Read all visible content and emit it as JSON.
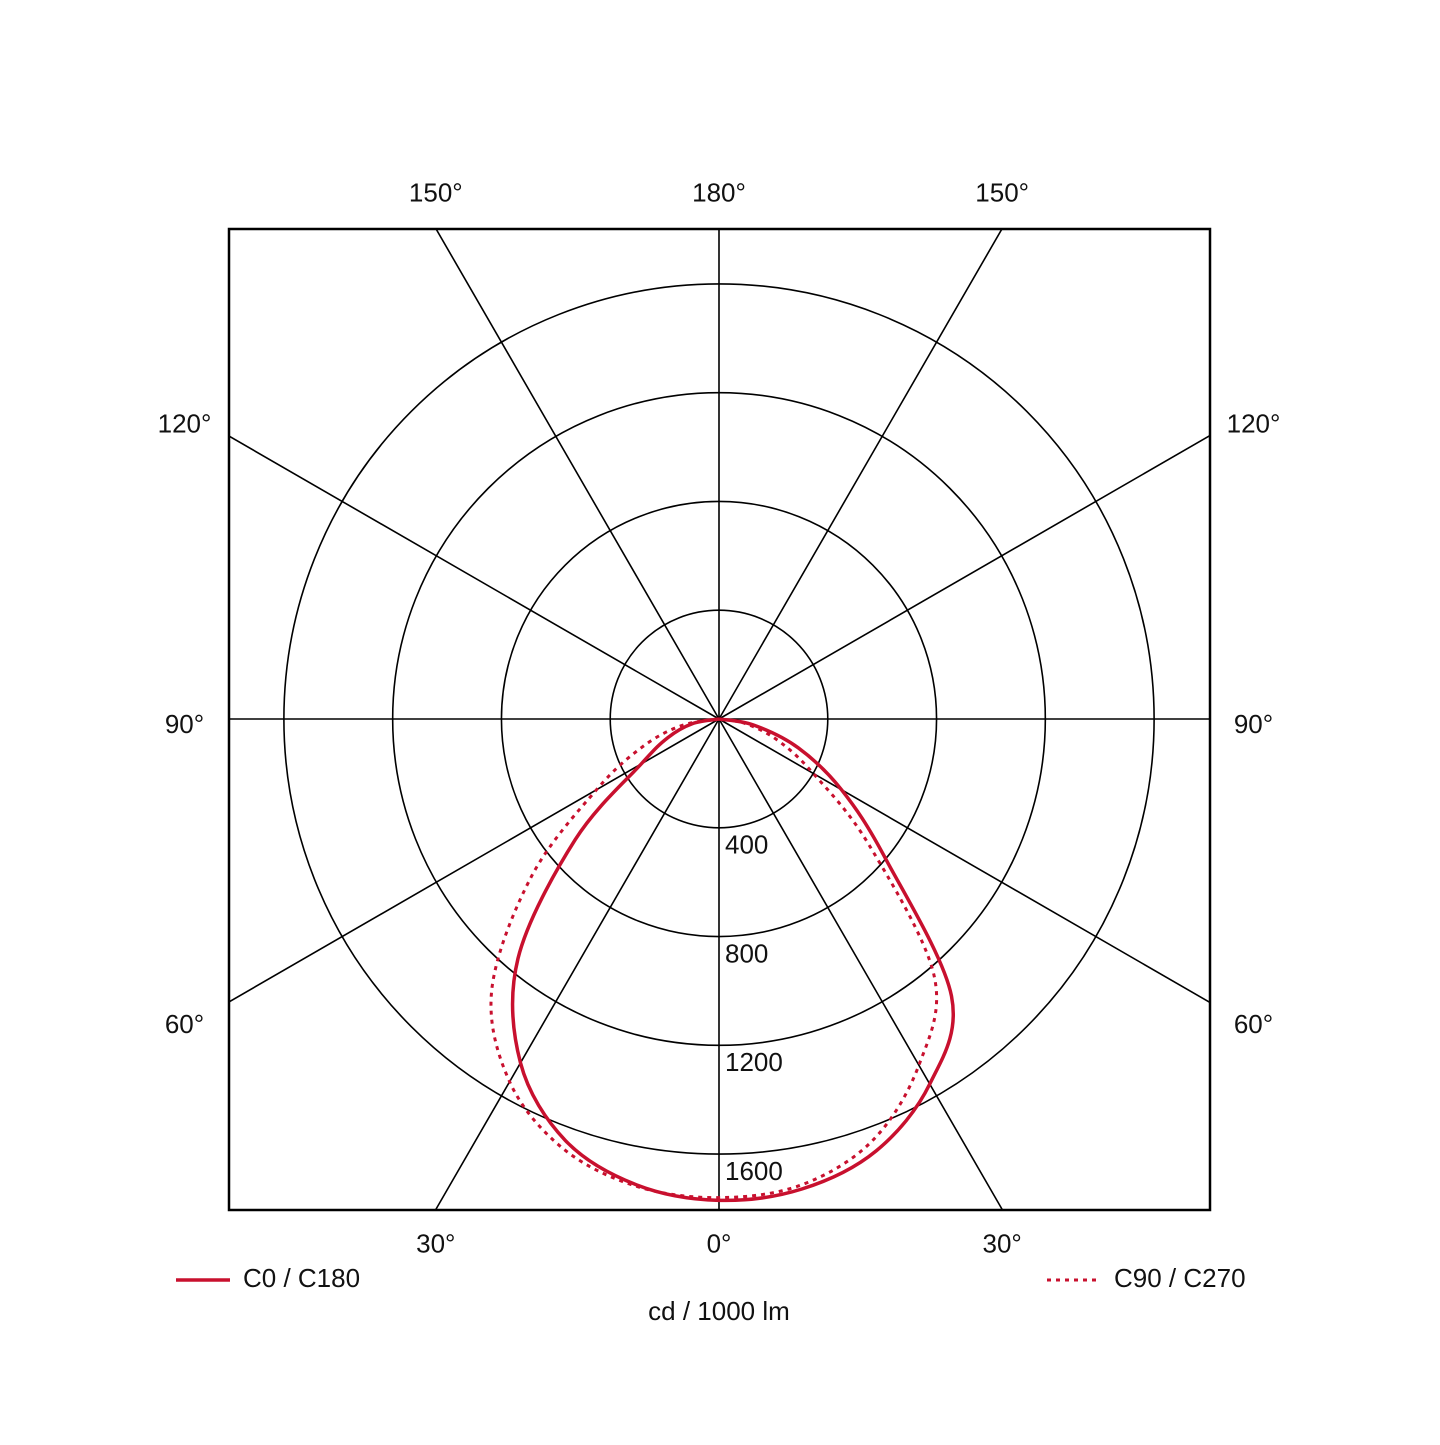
{
  "chart_data": {
    "type": "polar",
    "x": [
      -90,
      -80,
      -70,
      -60,
      -50,
      -40,
      -30,
      -20,
      -10,
      0,
      10,
      20,
      30,
      40,
      50,
      60,
      70,
      80,
      90
    ],
    "series": [
      {
        "name": "C0 / C180",
        "color": "#c8102e",
        "line_style": "solid",
        "values": [
          0,
          100,
          200,
          330,
          690,
          1150,
          1460,
          1650,
          1740,
          1770,
          1755,
          1690,
          1550,
          1330,
          800,
          520,
          310,
          130,
          0
        ]
      },
      {
        "name": "C90 / C270",
        "color": "#c8102e",
        "line_style": "dotted",
        "values": [
          0,
          140,
          300,
          520,
          900,
          1300,
          1540,
          1680,
          1745,
          1760,
          1740,
          1650,
          1470,
          1230,
          720,
          400,
          230,
          100,
          0
        ]
      }
    ],
    "rlim": [
      0,
      1800
    ],
    "rticks": [
      400,
      800,
      1200,
      1600
    ],
    "angle_ticks": [
      {
        "value": 0,
        "label": "0°"
      },
      {
        "value": 30,
        "label": "30°"
      },
      {
        "value": 60,
        "label": "60°"
      },
      {
        "value": 90,
        "label": "90°"
      },
      {
        "value": 120,
        "label": "120°"
      },
      {
        "value": 150,
        "label": "150°"
      },
      {
        "value": 180,
        "label": "180°"
      }
    ],
    "axis_label": "cd / 1000 lm",
    "grid": true
  }
}
